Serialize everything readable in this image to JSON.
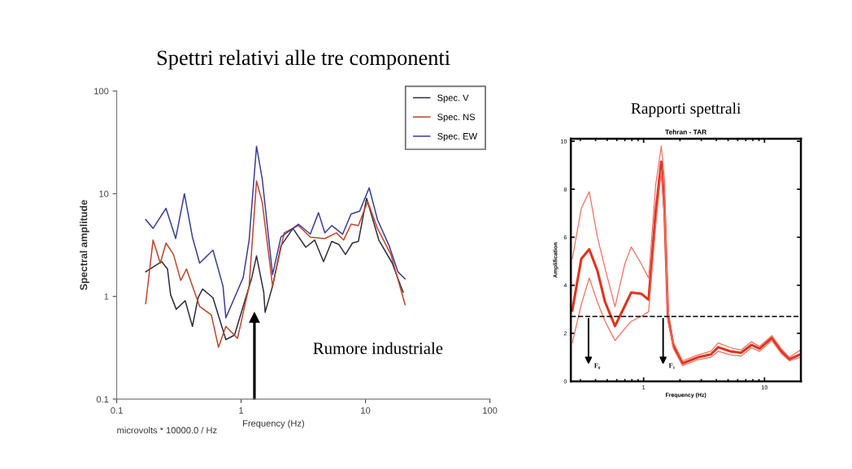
{
  "chart_data": [
    {
      "type": "line",
      "title": "Spettri relativi alle tre componenti",
      "xlabel": "Frequency (Hz)",
      "ylabel": "Spectral amplitude",
      "log": "xy",
      "xlim": [
        0.1,
        100
      ],
      "ylim": [
        0.1,
        100
      ],
      "xticks": [
        0.1,
        1,
        10,
        100
      ],
      "yticks": [
        0.1,
        1,
        10,
        100
      ],
      "grid": false,
      "legend": "top right",
      "annotations": [
        "microvolts * 10000.0 / Hz",
        "Rumore industriale"
      ],
      "series": [
        {
          "name": "Spec. V",
          "color": "#2e2e3c",
          "x": [
            0.171,
            0.23,
            0.256,
            0.271,
            0.301,
            0.355,
            0.406,
            0.451,
            0.49,
            0.594,
            0.754,
            0.885,
            1.22,
            1.33,
            1.52,
            1.56,
            1.79,
            2.09,
            2.61,
            3.31,
            3.9,
            4.6,
            5.35,
            6.1,
            6.9,
            7.86,
            8.76,
            10.2,
            12.8,
            16.4,
            19.2,
            20.1
          ],
          "values": [
            1.74,
            2.18,
            1.85,
            1.04,
            0.75,
            0.91,
            0.51,
            0.97,
            1.18,
            0.97,
            0.38,
            0.42,
            1.53,
            2.48,
            1.1,
            0.7,
            1.26,
            3.11,
            4.58,
            3.01,
            3.54,
            2.18,
            3.43,
            3.21,
            2.56,
            3.31,
            3.43,
            9.05,
            3.54,
            2.11,
            1.26,
            1.1
          ]
        },
        {
          "name": "Spec. NS",
          "color": "#c0452e",
          "x": [
            0.171,
            0.196,
            0.224,
            0.249,
            0.286,
            0.327,
            0.364,
            0.406,
            0.464,
            0.576,
            0.658,
            0.754,
            0.935,
            1.16,
            1.33,
            1.48,
            1.79,
            2.22,
            2.89,
            3.6,
            4.71,
            5.85,
            6.67,
            7.66,
            8.76,
            10.4,
            12.5,
            16.0,
            20.8
          ],
          "values": [
            0.85,
            3.54,
            2.11,
            3.31,
            2.56,
            1.43,
            1.85,
            1.26,
            0.8,
            0.66,
            0.32,
            0.51,
            0.39,
            1.26,
            13.3,
            8.2,
            1.26,
            4.16,
            4.9,
            3.78,
            3.66,
            4.16,
            3.54,
            5.05,
            4.9,
            8.4,
            4.58,
            2.56,
            0.83
          ]
        },
        {
          "name": "Spec. EW",
          "color": "#3b3f96",
          "x": [
            0.171,
            0.196,
            0.249,
            0.298,
            0.35,
            0.406,
            0.464,
            0.594,
            0.715,
            0.754,
            0.885,
            1.04,
            1.16,
            1.33,
            1.48,
            1.79,
            2.09,
            2.89,
            3.6,
            4.19,
            4.71,
            5.35,
            6.54,
            7.66,
            8.97,
            10.7,
            12.5,
            15.5,
            18.2,
            20.8
          ],
          "values": [
            5.6,
            4.6,
            7.2,
            3.66,
            10.0,
            3.78,
            2.11,
            2.82,
            1.26,
            0.62,
            0.97,
            1.53,
            3.54,
            29,
            13.8,
            1.63,
            3.78,
            5.05,
            4.04,
            6.53,
            4.16,
            4.9,
            4.03,
            6.35,
            6.75,
            11.4,
            5.56,
            3.11,
            1.74,
            1.48
          ]
        }
      ]
    },
    {
      "type": "line",
      "title": "Rapporti spettrali",
      "subtitle": "Tehran - TAR",
      "xlabel": "Frequency (Hz)",
      "ylabel": "Amplification",
      "log": "x",
      "xlim": [
        0.25,
        20
      ],
      "ylim": [
        0,
        10.1
      ],
      "xticks": [
        1,
        10
      ],
      "yticks": [
        0,
        2,
        4,
        6,
        8,
        10
      ],
      "grid": false,
      "ref_lines": [
        {
          "axis": "y",
          "value": 2.7,
          "color": "#000000",
          "line_style": "dashed"
        }
      ],
      "annotations": [
        {
          "text": "F₀",
          "x": 0.35,
          "y": 2.7
        },
        {
          "text": "F₁",
          "x": 1.45,
          "y": 2.7
        }
      ],
      "series": [
        {
          "color": "#e2321e",
          "x": [
            0.257,
            0.305,
            0.355,
            0.415,
            0.48,
            0.58,
            0.7,
            0.79,
            0.955,
            1.1,
            1.26,
            1.4,
            1.49,
            1.59,
            1.77,
            2.1,
            2.82,
            3.6,
            4.14,
            5.23,
            6.4,
            7.8,
            9.1,
            11.5,
            13.8,
            16.1,
            19.8
          ],
          "values": [
            2.95,
            5.1,
            5.5,
            4.6,
            3.3,
            2.3,
            3.15,
            3.7,
            3.65,
            3.4,
            7.1,
            9.15,
            7.1,
            2.7,
            1.46,
            0.75,
            1.0,
            1.12,
            1.42,
            1.25,
            1.19,
            1.52,
            1.36,
            1.8,
            1.25,
            0.92,
            1.12
          ]
        },
        {
          "color": "#ee7060",
          "x": [
            0.257,
            0.305,
            0.355,
            0.415,
            0.48,
            0.58,
            0.7,
            0.79,
            0.955,
            1.1,
            1.26,
            1.4,
            1.49,
            1.59,
            1.77,
            2.1,
            2.82,
            3.6,
            4.14,
            5.23,
            6.4,
            7.8,
            9.1,
            11.5,
            13.8,
            16.1,
            19.8
          ],
          "values": [
            5.1,
            7.2,
            7.9,
            6.0,
            4.7,
            3.1,
            4.9,
            5.6,
            4.9,
            4.3,
            8.2,
            9.8,
            8.4,
            3.0,
            1.6,
            0.85,
            1.1,
            1.25,
            1.6,
            1.4,
            1.3,
            1.65,
            1.45,
            1.9,
            1.35,
            1.0,
            1.3
          ]
        },
        {
          "color": "#ee7060",
          "x": [
            0.257,
            0.305,
            0.355,
            0.415,
            0.48,
            0.58,
            0.7,
            0.79,
            0.955,
            1.1,
            1.26,
            1.4,
            1.49,
            1.59,
            1.77,
            2.1,
            2.82,
            3.6,
            4.14,
            5.23,
            6.4,
            7.8,
            9.1,
            11.5,
            13.8,
            16.1,
            19.8
          ],
          "values": [
            1.6,
            3.2,
            4.3,
            3.3,
            2.5,
            1.7,
            2.2,
            2.5,
            2.7,
            2.9,
            6.5,
            8.8,
            6.8,
            2.5,
            1.35,
            0.65,
            0.9,
            1.0,
            1.25,
            1.1,
            1.05,
            1.4,
            1.25,
            1.7,
            1.15,
            0.85,
            1.0
          ]
        }
      ]
    }
  ]
}
